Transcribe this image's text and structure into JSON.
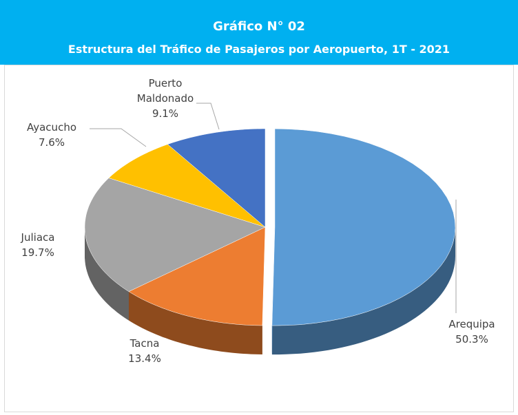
{
  "chart_data": {
    "type": "pie3d",
    "title": "Gráfico N° 02",
    "subtitle": "Estructura del Tráfico de Pasajeros por Aeropuerto, 1T - 2021",
    "categories": [
      "Arequipa",
      "Tacna",
      "Juliaca",
      "Ayacucho",
      "Puerto Maldonado"
    ],
    "values": [
      50.3,
      13.4,
      19.7,
      7.6,
      9.1
    ],
    "value_labels": [
      "50.3%",
      "13.4%",
      "19.7%",
      "7.6%",
      "9.1%"
    ],
    "colors": [
      "#5b9bd5",
      "#ed7d31",
      "#a5a5a5",
      "#ffc000",
      "#4472c4"
    ]
  }
}
